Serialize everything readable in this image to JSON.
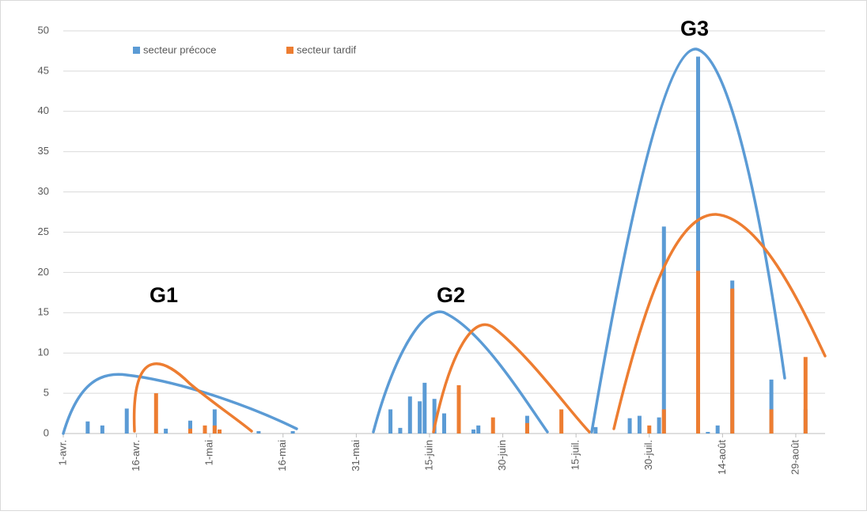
{
  "chart_data": {
    "type": "bar",
    "x": [
      5,
      8,
      13,
      19,
      21,
      26,
      29,
      31,
      32,
      40,
      47,
      67,
      69,
      71,
      73,
      74,
      76,
      78,
      81,
      84,
      85,
      88,
      95,
      102,
      109,
      116,
      118,
      120,
      122,
      123,
      130,
      132,
      134,
      137,
      145,
      152
    ],
    "series": [
      {
        "name": "secteur précoce",
        "color": "#5b9bd5",
        "values": [
          1.5,
          1,
          3.1,
          null,
          0.6,
          1.6,
          null,
          3,
          null,
          0.3,
          0.3,
          3,
          0.7,
          4.6,
          4,
          6.3,
          4.3,
          2.5,
          null,
          0.5,
          1,
          null,
          2.2,
          null,
          0.8,
          1.9,
          2.2,
          null,
          2,
          25.7,
          46.8,
          0.2,
          1,
          19,
          6.7,
          3
        ]
      },
      {
        "name": "secteur tardif",
        "color": "#ed7d31",
        "values": [
          null,
          null,
          null,
          5,
          null,
          0.6,
          1,
          1,
          0.5,
          null,
          null,
          null,
          null,
          null,
          null,
          null,
          null,
          null,
          6,
          null,
          null,
          2,
          1.3,
          3,
          null,
          null,
          null,
          1,
          null,
          3,
          20.2,
          null,
          null,
          18,
          3,
          9.5
        ]
      }
    ],
    "xlim": [
      0,
      156
    ],
    "xticks": [
      {
        "value": 0,
        "label": "1-avr."
      },
      {
        "value": 15,
        "label": "16-avr."
      },
      {
        "value": 30,
        "label": "1-mai"
      },
      {
        "value": 45,
        "label": "16-mai"
      },
      {
        "value": 60,
        "label": "31-mai"
      },
      {
        "value": 75,
        "label": "15-juin"
      },
      {
        "value": 90,
        "label": "30-juin"
      },
      {
        "value": 105,
        "label": "15-juil."
      },
      {
        "value": 120,
        "label": "30-juil."
      },
      {
        "value": 135,
        "label": "14-août"
      },
      {
        "value": 150,
        "label": "29-août"
      }
    ],
    "ylim": [
      0,
      50
    ],
    "yticks": [
      0,
      5,
      10,
      15,
      20,
      25,
      30,
      35,
      40,
      45,
      50
    ],
    "grid": true,
    "annotations": [
      "G1",
      "G2",
      "G3"
    ]
  }
}
